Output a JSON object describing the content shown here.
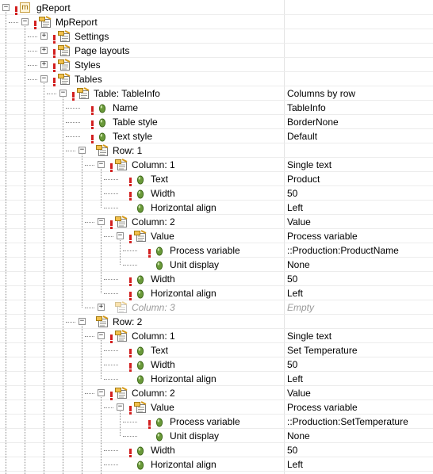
{
  "tree": {
    "rows": [
      {
        "depth": 0,
        "label": "gReport",
        "value": "",
        "icon": "module-icon",
        "expander": "minus",
        "excl": true,
        "dim": false
      },
      {
        "depth": 1,
        "label": "MpReport",
        "value": "",
        "icon": "object-icon",
        "expander": "minus",
        "excl": true,
        "dim": false
      },
      {
        "depth": 2,
        "label": "Settings",
        "value": "",
        "icon": "object-icon",
        "expander": "plus",
        "excl": true,
        "dim": false
      },
      {
        "depth": 2,
        "label": "Page layouts",
        "value": "",
        "icon": "object-icon",
        "expander": "plus",
        "excl": true,
        "dim": false
      },
      {
        "depth": 2,
        "label": "Styles",
        "value": "",
        "icon": "object-icon",
        "expander": "plus",
        "excl": true,
        "dim": false
      },
      {
        "depth": 2,
        "label": "Tables",
        "value": "",
        "icon": "object-icon",
        "expander": "minus",
        "excl": true,
        "dim": false
      },
      {
        "depth": 3,
        "label": "Table: TableInfo",
        "value": "Columns by row",
        "icon": "object-icon",
        "expander": "minus",
        "excl": true,
        "dim": false
      },
      {
        "depth": 4,
        "label": "Name",
        "value": "TableInfo",
        "icon": "property-icon",
        "expander": "",
        "excl": true,
        "dim": false
      },
      {
        "depth": 4,
        "label": "Table style",
        "value": "BorderNone",
        "icon": "property-icon",
        "expander": "",
        "excl": true,
        "dim": false
      },
      {
        "depth": 4,
        "label": "Text style",
        "value": "Default",
        "icon": "property-icon",
        "expander": "",
        "excl": true,
        "dim": false
      },
      {
        "depth": 4,
        "label": "Row: 1",
        "value": "",
        "icon": "object-icon",
        "expander": "minus",
        "excl": false,
        "dim": false
      },
      {
        "depth": 5,
        "label": "Column: 1",
        "value": "Single text",
        "icon": "object-icon",
        "expander": "minus",
        "excl": true,
        "dim": false
      },
      {
        "depth": 6,
        "label": "Text",
        "value": "Product",
        "icon": "property-icon",
        "expander": "",
        "excl": true,
        "dim": false
      },
      {
        "depth": 6,
        "label": "Width",
        "value": "50",
        "icon": "property-icon",
        "expander": "",
        "excl": true,
        "dim": false
      },
      {
        "depth": 6,
        "label": "Horizontal align",
        "value": "Left",
        "icon": "property-icon",
        "expander": "",
        "excl": false,
        "dim": false
      },
      {
        "depth": 5,
        "label": "Column: 2",
        "value": "Value",
        "icon": "object-icon",
        "expander": "minus",
        "excl": true,
        "dim": false
      },
      {
        "depth": 6,
        "label": "Value",
        "value": "Process variable",
        "icon": "object-icon",
        "expander": "minus",
        "excl": true,
        "dim": false
      },
      {
        "depth": 7,
        "label": "Process variable",
        "value": "::Production:ProductName",
        "icon": "property-icon",
        "expander": "",
        "excl": true,
        "dim": false
      },
      {
        "depth": 7,
        "label": "Unit display",
        "value": "None",
        "icon": "property-icon",
        "expander": "",
        "excl": false,
        "dim": false
      },
      {
        "depth": 6,
        "label": "Width",
        "value": "50",
        "icon": "property-icon",
        "expander": "",
        "excl": true,
        "dim": false
      },
      {
        "depth": 6,
        "label": "Horizontal align",
        "value": "Left",
        "icon": "property-icon",
        "expander": "",
        "excl": true,
        "dim": false
      },
      {
        "depth": 5,
        "label": "Column: 3",
        "value": "Empty",
        "icon": "object-icon",
        "expander": "plus",
        "excl": false,
        "dim": true
      },
      {
        "depth": 4,
        "label": "Row: 2",
        "value": "",
        "icon": "object-icon",
        "expander": "minus",
        "excl": false,
        "dim": false
      },
      {
        "depth": 5,
        "label": "Column: 1",
        "value": "Single text",
        "icon": "object-icon",
        "expander": "minus",
        "excl": true,
        "dim": false
      },
      {
        "depth": 6,
        "label": "Text",
        "value": "Set Temperature",
        "icon": "property-icon",
        "expander": "",
        "excl": true,
        "dim": false
      },
      {
        "depth": 6,
        "label": "Width",
        "value": "50",
        "icon": "property-icon",
        "expander": "",
        "excl": true,
        "dim": false
      },
      {
        "depth": 6,
        "label": "Horizontal align",
        "value": "Left",
        "icon": "property-icon",
        "expander": "",
        "excl": false,
        "dim": false
      },
      {
        "depth": 5,
        "label": "Column: 2",
        "value": "Value",
        "icon": "object-icon",
        "expander": "minus",
        "excl": true,
        "dim": false
      },
      {
        "depth": 6,
        "label": "Value",
        "value": "Process variable",
        "icon": "object-icon",
        "expander": "minus",
        "excl": true,
        "dim": false
      },
      {
        "depth": 7,
        "label": "Process variable",
        "value": "::Production:SetTemperature",
        "icon": "property-icon",
        "expander": "",
        "excl": true,
        "dim": false
      },
      {
        "depth": 7,
        "label": "Unit display",
        "value": "None",
        "icon": "property-icon",
        "expander": "",
        "excl": false,
        "dim": false
      },
      {
        "depth": 6,
        "label": "Width",
        "value": "50",
        "icon": "property-icon",
        "expander": "",
        "excl": true,
        "dim": false
      },
      {
        "depth": 6,
        "label": "Horizontal align",
        "value": "Left",
        "icon": "property-icon",
        "expander": "",
        "excl": false,
        "dim": false
      }
    ],
    "module_glyph": "m",
    "colors": {
      "error_marker": "#d21f1f",
      "property_dot": "#6a9a3a",
      "dim_text": "#9a9a9a"
    }
  }
}
